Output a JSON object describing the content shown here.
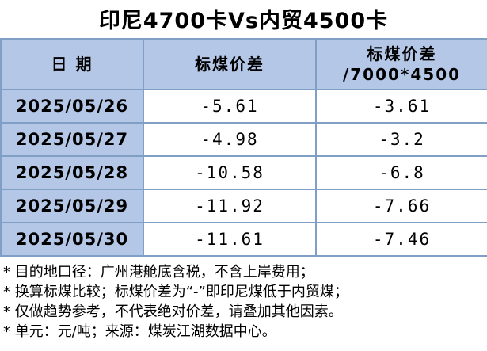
{
  "title": "印尼4700卡Vs内贸4500卡",
  "table": {
    "header": [
      "日 期",
      "标煤价差",
      [
        "标煤价差",
        "/7000*4500"
      ]
    ],
    "rows": [
      [
        "2025/05/26",
        "-5.61",
        "-3.61"
      ],
      [
        "2025/05/27",
        "-4.98",
        "-3.2"
      ],
      [
        "2025/05/28",
        "-10.58",
        "-6.8"
      ],
      [
        "2025/05/29",
        "-11.92",
        "-7.66"
      ],
      [
        "2025/05/30",
        "-11.61",
        "-7.46"
      ]
    ]
  },
  "notes": [
    "* 目的地口径：广州港舱底含税，不含上岸费用；",
    "* 换算标煤比较；标煤价差为“-”即印尼煤低于内贸煤；",
    "* 仅做趋势参考，不代表绝对价差，请叠加其他因素。",
    "* 单元：元/吨；来源：煤炭江湖数据中心。"
  ]
}
